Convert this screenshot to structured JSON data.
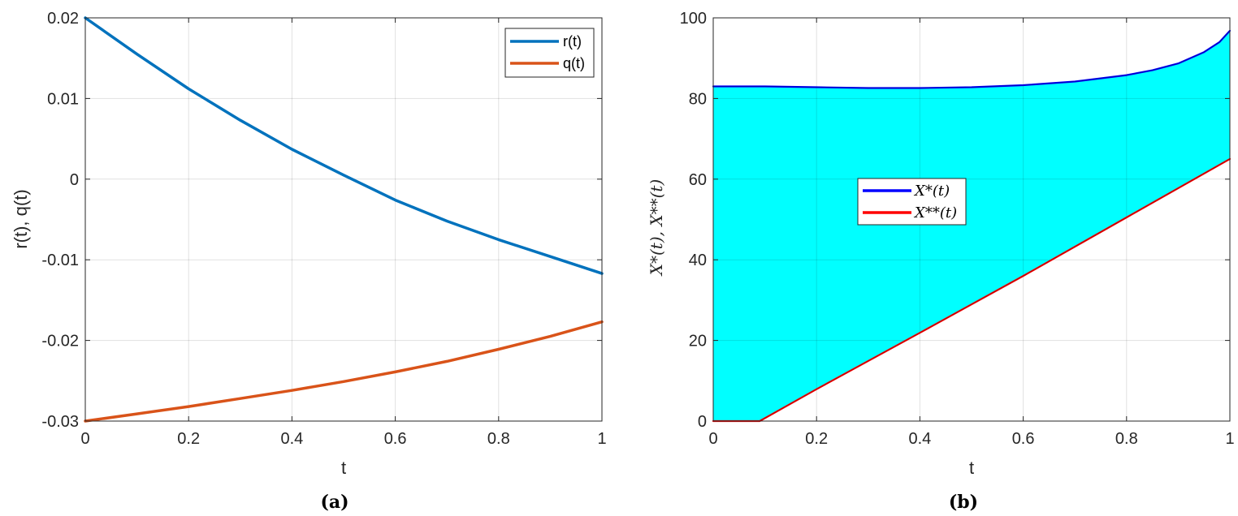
{
  "chart_data": [
    {
      "type": "line",
      "panel": "(a)",
      "xlabel": "t",
      "ylabel": "r(t), q(t)",
      "xlim": [
        0,
        1
      ],
      "ylim": [
        -0.03,
        0.02
      ],
      "xticks": [
        "0",
        "0.2",
        "0.4",
        "0.6",
        "0.8",
        "1"
      ],
      "yticks": [
        "-0.03",
        "-0.02",
        "-0.01",
        "0",
        "0.01",
        "0.02"
      ],
      "grid": true,
      "legend_position": "top-right",
      "series": [
        {
          "name": "r(t)",
          "color": "#0072BD",
          "x": [
            0,
            0.1,
            0.2,
            0.3,
            0.4,
            0.5,
            0.6,
            0.7,
            0.8,
            0.9,
            1.0
          ],
          "y": [
            0.02,
            0.0155,
            0.0112,
            0.0073,
            0.0037,
            0.0005,
            -0.0026,
            -0.0052,
            -0.0075,
            -0.0096,
            -0.0117
          ]
        },
        {
          "name": "q(t)",
          "color": "#D95319",
          "x": [
            0,
            0.1,
            0.2,
            0.3,
            0.4,
            0.5,
            0.6,
            0.7,
            0.8,
            0.9,
            1.0
          ],
          "y": [
            -0.03,
            -0.0291,
            -0.0282,
            -0.0272,
            -0.0262,
            -0.0251,
            -0.0239,
            -0.0226,
            -0.0211,
            -0.0195,
            -0.0177
          ]
        }
      ]
    },
    {
      "type": "area",
      "panel": "(b)",
      "xlabel": "t",
      "ylabel": "X*(t), X**(t)",
      "xlim": [
        0,
        1
      ],
      "ylim": [
        0,
        100
      ],
      "xticks": [
        "0",
        "0.2",
        "0.4",
        "0.6",
        "0.8",
        "1"
      ],
      "yticks": [
        "0",
        "20",
        "40",
        "60",
        "80",
        "100"
      ],
      "grid": true,
      "legend_position": "center",
      "fill_color": "#00FFFF",
      "series": [
        {
          "name": "X*(t)",
          "color": "#0000FF",
          "x": [
            0,
            0.05,
            0.1,
            0.2,
            0.3,
            0.4,
            0.5,
            0.6,
            0.7,
            0.8,
            0.85,
            0.9,
            0.95,
            0.98,
            1.0
          ],
          "y": [
            83,
            83,
            83,
            82.8,
            82.6,
            82.6,
            82.8,
            83.3,
            84.2,
            85.8,
            87,
            88.7,
            91.5,
            94,
            96.8
          ]
        },
        {
          "name": "X**(t)",
          "color": "#FF0000",
          "x": [
            0,
            0.09,
            0.2,
            0.4,
            0.6,
            0.8,
            1.0
          ],
          "y": [
            0,
            0,
            7.9,
            21.9,
            36.0,
            50.5,
            65.0
          ]
        }
      ]
    }
  ],
  "captions": [
    "(a)",
    "(b)"
  ]
}
